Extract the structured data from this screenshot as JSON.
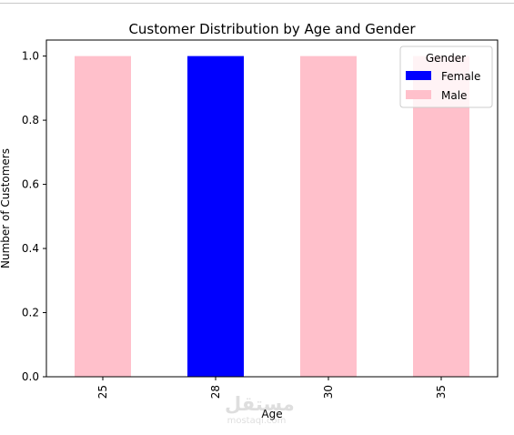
{
  "chart_data": {
    "type": "bar",
    "stacked": true,
    "title": "Customer Distribution by Age and Gender",
    "xlabel": "Age",
    "ylabel": "Number of Customers",
    "categories": [
      "25",
      "28",
      "30",
      "35"
    ],
    "series": [
      {
        "name": "Female",
        "color": "#0000ff",
        "values": [
          0,
          1,
          0,
          0
        ]
      },
      {
        "name": "Male",
        "color": "#ffc0cb",
        "values": [
          1,
          0,
          1,
          1
        ]
      }
    ],
    "ylim": [
      0,
      1.05
    ],
    "yticks": [
      "0.0",
      "0.2",
      "0.4",
      "0.6",
      "0.8",
      "1.0"
    ],
    "legend": {
      "title": "Gender",
      "placement": "top-right"
    },
    "grid": false
  },
  "watermark": {
    "logo_text": "مستقل",
    "site": "mostaql.com"
  }
}
